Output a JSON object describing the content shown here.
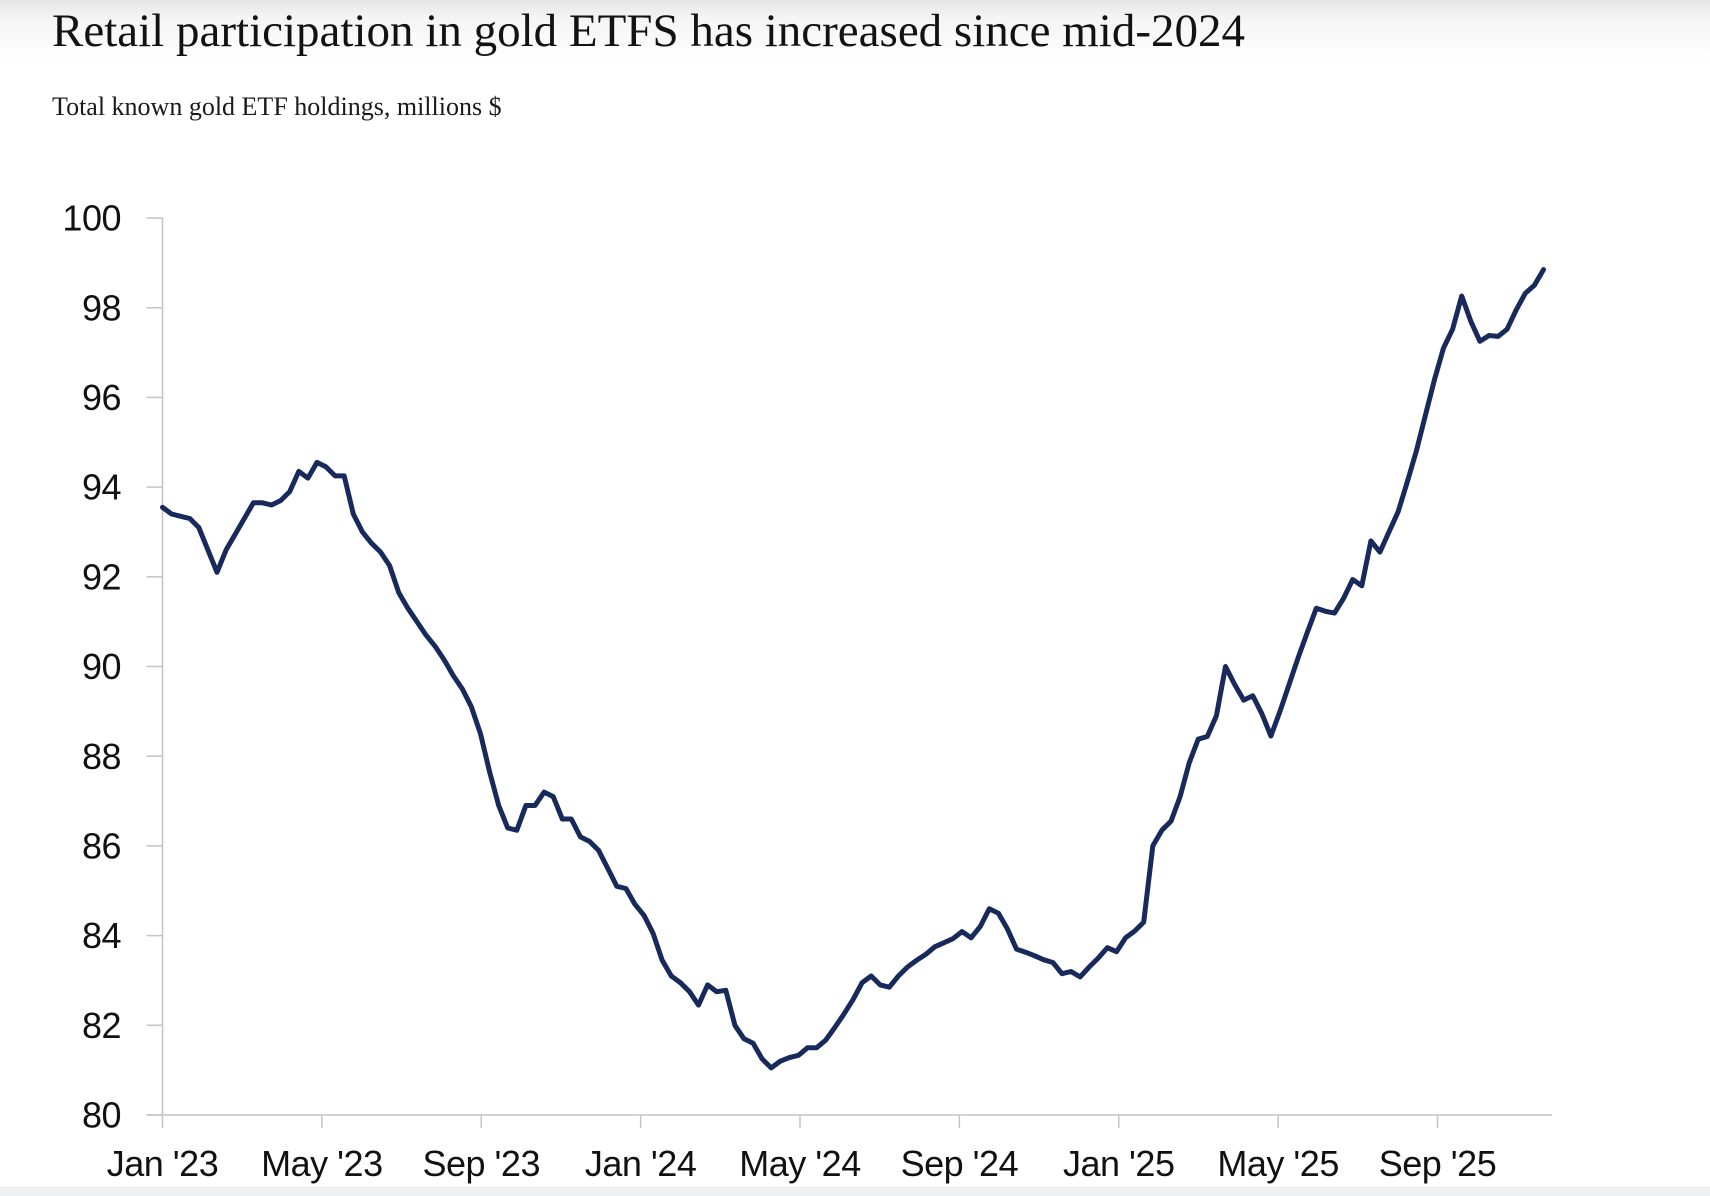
{
  "style": {
    "line_color": "#18295b",
    "axis_color": "#c4c4c4",
    "label_color": "#111111",
    "background": "#ffffff"
  },
  "chart_data": {
    "type": "line",
    "title": "Retail participation in gold ETFS has increased since mid-2024",
    "subtitle": "Total known gold ETF holdings, millions $",
    "xlabel": "",
    "ylabel": "Total known gold ETF holdings, millions $",
    "ylim": [
      80,
      100
    ],
    "y_ticks": [
      80,
      82,
      84,
      86,
      88,
      90,
      92,
      94,
      96,
      98,
      100
    ],
    "y_tick_labels": [
      "80",
      "82",
      "84",
      "86",
      "88",
      "90",
      "92",
      "94",
      "96",
      "98",
      "100"
    ],
    "x_tick_labels": [
      "Jan '23",
      "May '23",
      "Sep '23",
      "Jan '24",
      "May '24",
      "Sep '24",
      "Jan '25",
      "May '25",
      "Sep '25"
    ],
    "months_per_x_tick": 4,
    "x_domain_months": 34.66,
    "grid": false,
    "legend": "none",
    "series": [
      {
        "name": "Total known gold ETF holdings (millions $)",
        "cadence": "weekly",
        "first_point": "Jan 2023",
        "last_point": "Nov 2025",
        "color": "#18295b",
        "values": [
          93.55,
          93.4,
          93.35,
          93.3,
          93.1,
          92.6,
          92.1,
          92.6,
          92.95,
          93.3,
          93.65,
          93.65,
          93.6,
          93.7,
          93.9,
          94.35,
          94.2,
          94.55,
          94.45,
          94.25,
          94.25,
          93.4,
          93.0,
          92.75,
          92.55,
          92.25,
          91.65,
          91.3,
          91.0,
          90.7,
          90.45,
          90.15,
          89.8,
          89.5,
          89.1,
          88.5,
          87.65,
          86.9,
          86.4,
          86.35,
          86.9,
          86.9,
          87.2,
          87.1,
          86.6,
          86.6,
          86.2,
          86.1,
          85.9,
          85.5,
          85.1,
          85.05,
          84.7,
          84.45,
          84.05,
          83.45,
          83.1,
          82.95,
          82.75,
          82.45,
          82.9,
          82.75,
          82.78,
          82.0,
          81.7,
          81.6,
          81.25,
          81.05,
          81.2,
          81.28,
          81.33,
          81.5,
          81.5,
          81.67,
          81.95,
          82.25,
          82.57,
          82.95,
          83.1,
          82.9,
          82.85,
          83.1,
          83.3,
          83.45,
          83.58,
          83.75,
          83.84,
          83.93,
          84.09,
          83.95,
          84.2,
          84.6,
          84.5,
          84.15,
          83.7,
          83.63,
          83.55,
          83.46,
          83.4,
          83.15,
          83.2,
          83.08,
          83.3,
          83.5,
          83.73,
          83.64,
          83.95,
          84.1,
          84.3,
          86.0,
          86.35,
          86.55,
          87.1,
          87.85,
          88.38,
          88.44,
          88.9,
          90.0,
          89.6,
          89.25,
          89.35,
          88.95,
          88.45,
          89.0,
          89.6,
          90.2,
          90.76,
          91.3,
          91.23,
          91.19,
          91.52,
          91.94,
          91.8,
          92.8,
          92.55,
          93.0,
          93.45,
          94.11,
          94.8,
          95.6,
          96.4,
          97.1,
          97.52,
          98.26,
          97.7,
          97.25,
          97.38,
          97.36,
          97.52,
          97.95,
          98.32,
          98.5,
          98.85
        ]
      }
    ]
  }
}
